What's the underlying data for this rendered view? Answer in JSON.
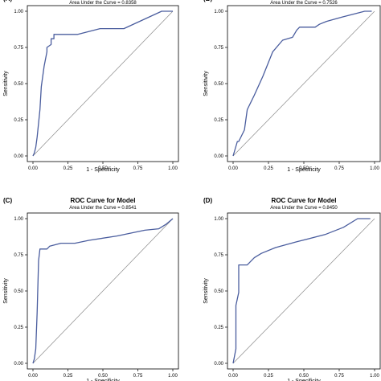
{
  "chart_data": [
    {
      "type": "line",
      "panel_label": "(A)",
      "title": "ROC Curve for Model",
      "subtitle": "Area Under the Curve = 0.8358",
      "xlabel": "1 - Specificity",
      "ylabel": "Sensitivity",
      "xlim": [
        0,
        1
      ],
      "ylim": [
        0,
        1
      ],
      "xticks": [
        "0.00",
        "0.25",
        "0.50",
        "0.75",
        "1.00"
      ],
      "yticks": [
        "0.00",
        "0.25",
        "0.50",
        "0.75",
        "1.00"
      ],
      "series": [
        {
          "x": [
            0,
            0.01,
            0.02,
            0.03,
            0.05,
            0.06,
            0.08,
            0.1,
            0.1,
            0.13,
            0.13,
            0.15,
            0.15,
            0.2,
            0.32,
            0.48,
            0.65,
            0.92,
            1.0
          ],
          "y": [
            0,
            0.02,
            0.06,
            0.13,
            0.32,
            0.48,
            0.62,
            0.72,
            0.75,
            0.77,
            0.81,
            0.81,
            0.84,
            0.84,
            0.84,
            0.88,
            0.88,
            1.0,
            1.0
          ]
        }
      ]
    },
    {
      "type": "line",
      "panel_label": "(B)",
      "title": "ROC Curve for Model",
      "subtitle": "Area Under the Curve = 0.7526",
      "xlabel": "1 - Specificity",
      "ylabel": "Sensitivity",
      "xlim": [
        0,
        1
      ],
      "ylim": [
        0,
        1
      ],
      "xticks": [
        "0.00",
        "0.25",
        "0.50",
        "0.75",
        "1.00"
      ],
      "yticks": [
        "0.00",
        "0.25",
        "0.50",
        "0.75",
        "1.00"
      ],
      "series": [
        {
          "x": [
            0,
            0.03,
            0.04,
            0.08,
            0.1,
            0.15,
            0.21,
            0.28,
            0.35,
            0.42,
            0.45,
            0.47,
            0.58,
            0.61,
            0.66,
            0.77,
            0.93,
            0.98
          ],
          "y": [
            0,
            0.1,
            0.1,
            0.18,
            0.32,
            0.42,
            0.55,
            0.72,
            0.8,
            0.82,
            0.87,
            0.89,
            0.89,
            0.91,
            0.93,
            0.96,
            1.0,
            1.0
          ]
        }
      ]
    },
    {
      "type": "line",
      "panel_label": "(C)",
      "title": "ROC Curve for Model",
      "subtitle": "Area Under the Curve = 0.8541",
      "xlabel": "1 - Specificity",
      "ylabel": "Sensitivity",
      "xlim": [
        0,
        1
      ],
      "ylim": [
        0,
        1
      ],
      "xticks": [
        "0.00",
        "0.25",
        "0.50",
        "0.75",
        "1.00"
      ],
      "yticks": [
        "0.00",
        "0.25",
        "0.50",
        "0.75",
        "1.00"
      ],
      "series": [
        {
          "x": [
            0,
            0.01,
            0.02,
            0.03,
            0.04,
            0.05,
            0.1,
            0.12,
            0.2,
            0.3,
            0.4,
            0.6,
            0.7,
            0.8,
            0.9,
            0.95,
            1.0
          ],
          "y": [
            0,
            0.03,
            0.1,
            0.35,
            0.71,
            0.79,
            0.79,
            0.81,
            0.83,
            0.83,
            0.85,
            0.88,
            0.9,
            0.92,
            0.93,
            0.96,
            1.0
          ]
        }
      ]
    },
    {
      "type": "line",
      "panel_label": "(D)",
      "title": "ROC Curve for Model",
      "subtitle": "Area Under the Curve = 0.8450",
      "xlabel": "1 - Specificity",
      "ylabel": "Sensitivity",
      "xlim": [
        0,
        1
      ],
      "ylim": [
        0,
        1
      ],
      "xticks": [
        "0.00",
        "0.25",
        "0.50",
        "0.75",
        "1.00"
      ],
      "yticks": [
        "0.00",
        "0.25",
        "0.50",
        "0.75",
        "1.00"
      ],
      "series": [
        {
          "x": [
            0,
            0.02,
            0.02,
            0.04,
            0.04,
            0.1,
            0.15,
            0.2,
            0.3,
            0.45,
            0.65,
            0.78,
            0.88,
            0.97
          ],
          "y": [
            0,
            0.1,
            0.4,
            0.49,
            0.68,
            0.68,
            0.73,
            0.76,
            0.8,
            0.84,
            0.89,
            0.94,
            1.0,
            1.0
          ]
        }
      ]
    }
  ],
  "colors": {
    "roc_line": "#4a5d9e",
    "diagonal": "#8a8a8a",
    "frame": "#000000"
  }
}
